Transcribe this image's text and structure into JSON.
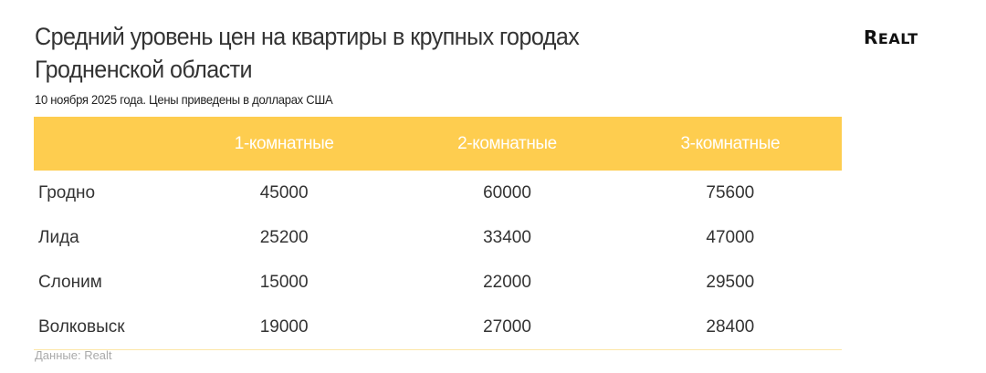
{
  "title": "Средний уровень цен на квартиры в крупных городах Гродненской области",
  "subtitle": "10 ноября 2025 года. Цены приведены в долларах США",
  "logo": "REALT",
  "source": "Данные: Realt",
  "colors": {
    "accent": "#fecd4f",
    "header_text": "#ffffff"
  },
  "chart_data": {
    "type": "table",
    "columns": [
      "",
      "1-комнатные",
      "2-комнатные",
      "3-комнатные"
    ],
    "rows": [
      {
        "city": "Гродно",
        "values": [
          "45000",
          "60000",
          "75600"
        ]
      },
      {
        "city": "Лида",
        "values": [
          "25200",
          "33400",
          "47000"
        ]
      },
      {
        "city": "Слоним",
        "values": [
          "15000",
          "22000",
          "29500"
        ]
      },
      {
        "city": "Волковыск",
        "values": [
          "19000",
          "27000",
          "28400"
        ]
      }
    ]
  }
}
